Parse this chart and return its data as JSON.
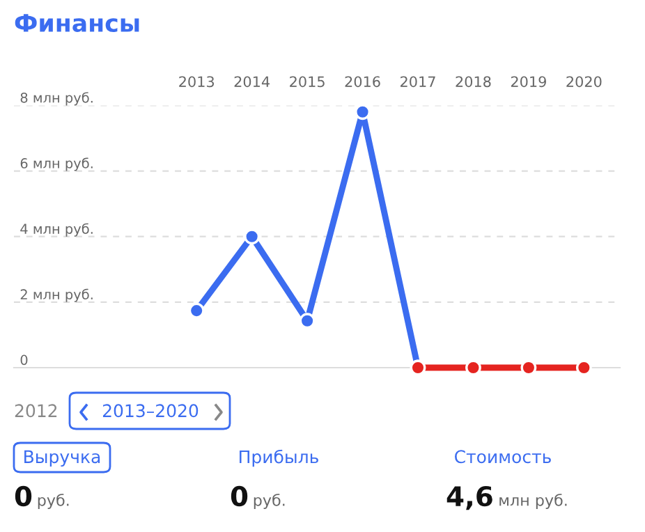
{
  "chart_data": {
    "type": "line",
    "title": "Финансы",
    "categories": [
      "2013",
      "2014",
      "2015",
      "2016",
      "2017",
      "2018",
      "2019",
      "2020"
    ],
    "series": [
      {
        "color": "#3b6cf0",
        "values": [
          1.74,
          4.0,
          1.43,
          7.8,
          0,
          null,
          null,
          null
        ]
      },
      {
        "color": "#e52420",
        "values": [
          null,
          null,
          null,
          null,
          0,
          0,
          0,
          0
        ]
      }
    ],
    "ylim": [
      0,
      8
    ],
    "yticks": [
      {
        "value": 0,
        "label": "0"
      },
      {
        "value": 2,
        "label": "2 млн руб."
      },
      {
        "value": 4,
        "label": "4 млн руб."
      },
      {
        "value": 6,
        "label": "6 млн руб."
      },
      {
        "value": 8,
        "label": "8 млн руб."
      }
    ],
    "grid": "y",
    "legend": false,
    "marker": "circle",
    "line_style": "solid",
    "annotations": [
      "2012",
      "2013–2020",
      "Выручка",
      "Прибыль",
      "Стоимость",
      "0 руб.",
      "0 руб.",
      "4,6 млн руб."
    ]
  }
}
